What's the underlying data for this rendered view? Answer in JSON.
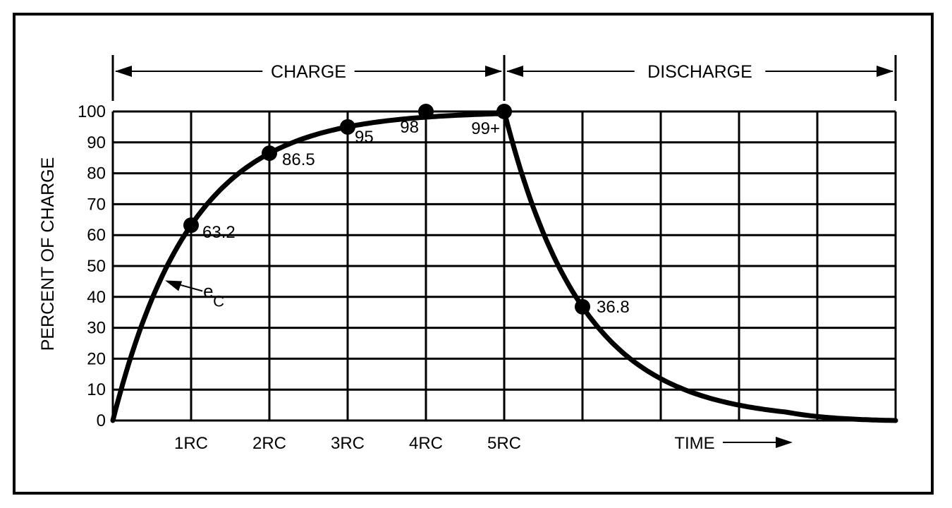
{
  "chart_data": {
    "type": "line",
    "title": "",
    "ylabel": "PERCENT OF CHARGE",
    "xlabel": "TIME",
    "ylim": [
      0,
      100
    ],
    "y_ticks": [
      "0",
      "10",
      "20",
      "30",
      "40",
      "50",
      "60",
      "70",
      "80",
      "90",
      "100"
    ],
    "x_tick_labels": [
      "1RC",
      "2RC",
      "3RC",
      "4RC",
      "5RC"
    ],
    "xlim": [
      0,
      10
    ],
    "grid": true,
    "phases": [
      {
        "label": "CHARGE",
        "start": 0,
        "end": 5
      },
      {
        "label": "DISCHARGE",
        "start": 5,
        "end": 10
      }
    ],
    "curve_label": {
      "main": "e",
      "sub": "C"
    },
    "series": [
      {
        "x": [
          0,
          1,
          2,
          3,
          4,
          5,
          5,
          6,
          7,
          8,
          9,
          10
        ],
        "values": [
          0,
          63.2,
          86.5,
          95,
          98,
          99,
          99,
          36.8,
          13.5,
          5,
          2,
          0
        ]
      }
    ],
    "points": [
      {
        "x": 1,
        "y": 63.2,
        "label": "63.2"
      },
      {
        "x": 2,
        "y": 86.5,
        "label": "86.5"
      },
      {
        "x": 3,
        "y": 95,
        "label": "95"
      },
      {
        "x": 4,
        "y": 98,
        "label": "98"
      },
      {
        "x": 5,
        "y": 99,
        "label": "99+"
      },
      {
        "x": 6,
        "y": 36.8,
        "label": "36.8"
      }
    ]
  }
}
